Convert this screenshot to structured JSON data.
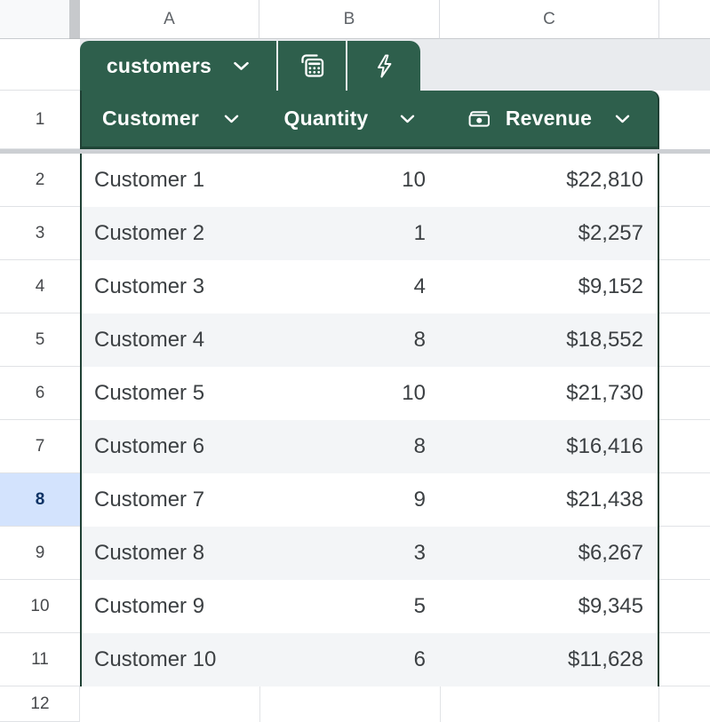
{
  "spreadsheet": {
    "column_headers": [
      "A",
      "B",
      "C"
    ],
    "row_numbers": [
      "1",
      "2",
      "3",
      "4",
      "5",
      "6",
      "7",
      "8",
      "9",
      "10",
      "11",
      "12"
    ],
    "selected_row": "8"
  },
  "table": {
    "tab_label": "customers",
    "icons": {
      "tab_dropdown": "chevron-down-icon",
      "formula_tab": "calculator-icon",
      "quick_action_tab": "lightning-bolt-icon",
      "revenue_type": "banknote-icon",
      "header_dropdown": "chevron-down-icon"
    },
    "columns": [
      {
        "label": "Customer"
      },
      {
        "label": "Quantity"
      },
      {
        "label": "Revenue"
      }
    ],
    "rows": [
      {
        "customer": "Customer 1",
        "quantity": "10",
        "revenue": "$22,810"
      },
      {
        "customer": "Customer 2",
        "quantity": "1",
        "revenue": "$2,257"
      },
      {
        "customer": "Customer 3",
        "quantity": "4",
        "revenue": "$9,152"
      },
      {
        "customer": "Customer 4",
        "quantity": "8",
        "revenue": "$18,552"
      },
      {
        "customer": "Customer 5",
        "quantity": "10",
        "revenue": "$21,730"
      },
      {
        "customer": "Customer 6",
        "quantity": "8",
        "revenue": "$16,416"
      },
      {
        "customer": "Customer 7",
        "quantity": "9",
        "revenue": "$21,438"
      },
      {
        "customer": "Customer 8",
        "quantity": "3",
        "revenue": "$6,267"
      },
      {
        "customer": "Customer 9",
        "quantity": "5",
        "revenue": "$9,345"
      },
      {
        "customer": "Customer 10",
        "quantity": "6",
        "revenue": "$11,628"
      }
    ]
  },
  "colors": {
    "table_green": "#2e5f4c",
    "table_border_green": "#1f4034",
    "tab_strip_bg": "#e9ebee",
    "alt_row_bg": "#f3f5f7",
    "selected_row_bg": "#d3e3fd",
    "selected_row_text": "#0b3264"
  }
}
